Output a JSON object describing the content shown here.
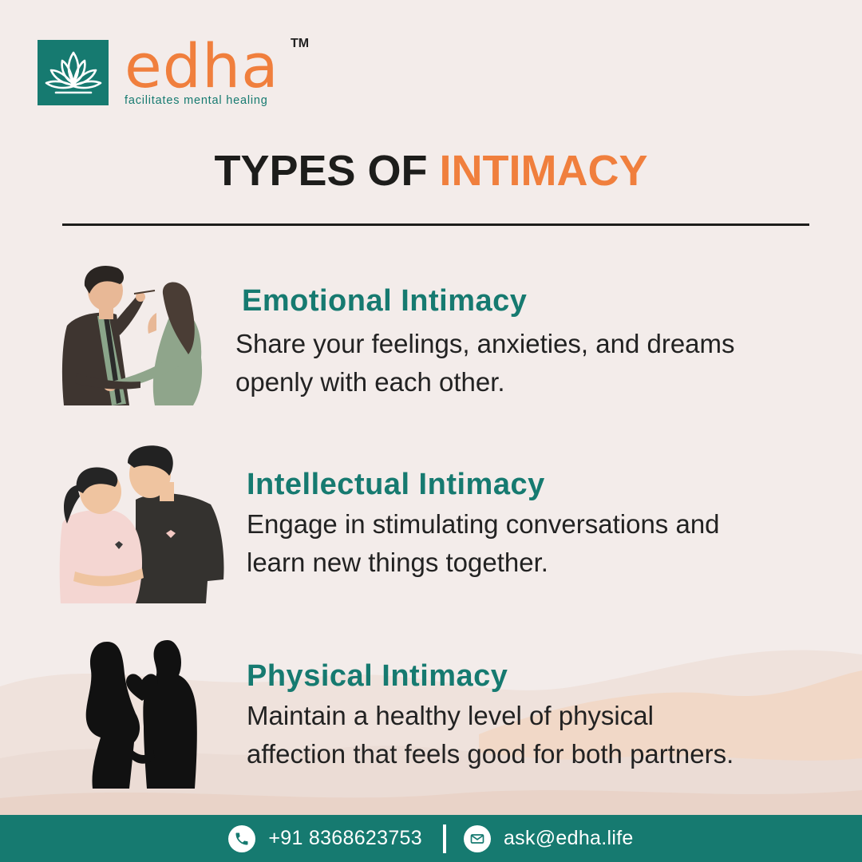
{
  "brand": {
    "name": "edha",
    "trademark": "TM",
    "tagline": "facilitates mental healing",
    "primary_color": "#167a70",
    "accent_color": "#f07f3d",
    "logo_icon": "lotus-icon"
  },
  "title": {
    "part1": "TYPES OF ",
    "part2": "INTIMACY"
  },
  "items": [
    {
      "title": "Emotional Intimacy",
      "line1": "Share your feelings, anxieties, and dreams",
      "line2": "openly with each other.",
      "illustration": "couple-glasses-illustration"
    },
    {
      "title": "Intellectual Intimacy",
      "line1": "Engage in stimulating conversations and",
      "line2": "learn new things together.",
      "illustration": "couple-hugging-illustration"
    },
    {
      "title": "Physical Intimacy",
      "line1": "Maintain a healthy level of physical",
      "line2": "affection that feels good for both partners.",
      "illustration": "couple-silhouette-heart-illustration"
    }
  ],
  "footer": {
    "phone": "+91 8368623753",
    "email": "ask@edha.life",
    "phone_icon": "phone-icon",
    "email_icon": "mail-icon"
  }
}
